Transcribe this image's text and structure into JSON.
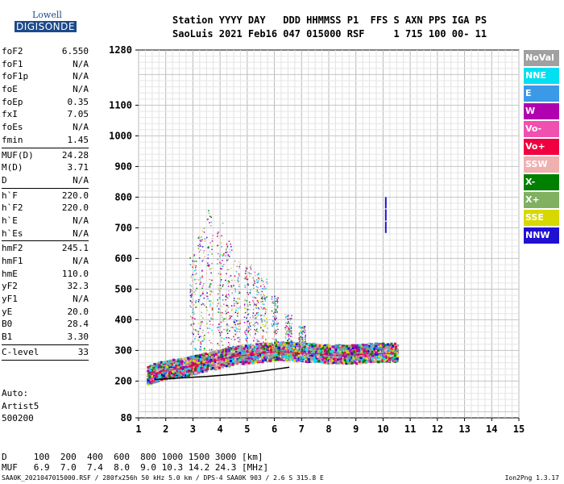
{
  "logo": {
    "line1": "Lowell",
    "line2": "DIGISONDE"
  },
  "header": {
    "line1": "Station YYYY DAY   DDD HHMMSS P1  FFS S AXN PPS IGA PS",
    "line2": "SaoLuis 2021 Feb16 047 015000 RSF     1 715 100 00- 11"
  },
  "params_groups": [
    [
      [
        "foF2",
        "6.550"
      ],
      [
        "foF1",
        "N/A"
      ],
      [
        "foF1p",
        "N/A"
      ],
      [
        "foE",
        "N/A"
      ],
      [
        "foEp",
        "0.35"
      ],
      [
        "fxI",
        "7.05"
      ],
      [
        "foEs",
        "N/A"
      ],
      [
        "fmin",
        "1.45"
      ]
    ],
    [
      [
        "MUF(D)",
        "24.28"
      ],
      [
        "M(D)",
        "3.71"
      ],
      [
        "D",
        "N/A"
      ]
    ],
    [
      [
        "h`F",
        "220.0"
      ],
      [
        "h`F2",
        "220.0"
      ],
      [
        "h`E",
        "N/A"
      ],
      [
        "h`Es",
        "N/A"
      ]
    ],
    [
      [
        "hmF2",
        "245.1"
      ],
      [
        "hmF1",
        "N/A"
      ],
      [
        "hmE",
        "110.0"
      ],
      [
        "yF2",
        "32.3"
      ],
      [
        "yF1",
        "N/A"
      ],
      [
        "yE",
        "20.0"
      ],
      [
        "B0",
        "28.4"
      ],
      [
        "B1",
        "3.30"
      ]
    ],
    [
      [
        "C-level",
        "33"
      ]
    ]
  ],
  "auto": {
    "line1": "Auto:",
    "line2": "Artist5",
    "line3": "500200"
  },
  "legend": [
    {
      "label": "NoVal",
      "color": "#a0a0a0"
    },
    {
      "label": "NNE",
      "color": "#00e0f0"
    },
    {
      "label": "E",
      "color": "#3a9ae8"
    },
    {
      "label": "W",
      "color": "#b000b0"
    },
    {
      "label": "Vo-",
      "color": "#f050b0"
    },
    {
      "label": "Vo+",
      "color": "#f00040"
    },
    {
      "label": "SSW",
      "color": "#f0b0b0"
    },
    {
      "label": "X-",
      "color": "#008000"
    },
    {
      "label": "X+",
      "color": "#80b060"
    },
    {
      "label": "SSE",
      "color": "#d8d800"
    },
    {
      "label": "NNW",
      "color": "#2010d0"
    }
  ],
  "bottom": {
    "d_row": "D     100  200  400  600  800 1000 1500 3000 [km]",
    "muf_row": "MUF   6.9  7.0  7.4  8.0  9.0 10.3 14.2 24.3 [MHz]",
    "footer": "SAA0K_2021047015000.RSF / 280fx256h 50 kHz 5.0 km / DPS-4 SAA0K 903 / 2.6 S 315.8 E",
    "version": "Ion2Png 1.3.17"
  },
  "chart_data": {
    "type": "scatter",
    "xlim": [
      1,
      15
    ],
    "x_ticks": [
      1,
      2,
      3,
      4,
      5,
      6,
      7,
      8,
      9,
      10,
      11,
      12,
      13,
      14,
      15
    ],
    "y_ticks": [
      80,
      200,
      300,
      400,
      500,
      600,
      700,
      800,
      900,
      1000,
      1100,
      1280
    ],
    "ylim": [
      80,
      1280
    ],
    "grid": true,
    "legend_position": "right",
    "traces": [
      {
        "name": "O-trace",
        "color": "#f00040",
        "x": [
          1.3,
          1.6,
          2.0,
          2.5,
          3.0,
          3.5,
          4.0,
          4.5,
          5.0,
          5.5,
          6.0,
          6.5,
          7.0,
          7.5,
          8.0,
          8.5,
          9.0,
          9.5,
          10.0,
          10.5
        ],
        "y": [
          215,
          225,
          235,
          240,
          250,
          260,
          270,
          280,
          285,
          290,
          295,
          295,
          290,
          290,
          285,
          285,
          285,
          290,
          290,
          290
        ]
      },
      {
        "name": "spread-F",
        "color": "#b000b0",
        "x": [
          3.0,
          3.3,
          3.6,
          4.0,
          4.3,
          4.6,
          5.0,
          5.3,
          5.6,
          6.0,
          6.5,
          7.0
        ],
        "y": [
          620,
          700,
          760,
          720,
          660,
          600,
          580,
          560,
          540,
          480,
          420,
          380
        ]
      },
      {
        "name": "oblique",
        "color": "#2010d0",
        "x": [
          10.1,
          10.1,
          10.1
        ],
        "y": [
          720,
          760,
          800
        ]
      },
      {
        "name": "profile",
        "color": "#000000",
        "x": [
          1.6,
          2.5,
          3.5,
          4.5,
          5.5,
          6.3,
          6.55
        ],
        "y": [
          205,
          210,
          215,
          222,
          232,
          242,
          245
        ]
      }
    ]
  }
}
